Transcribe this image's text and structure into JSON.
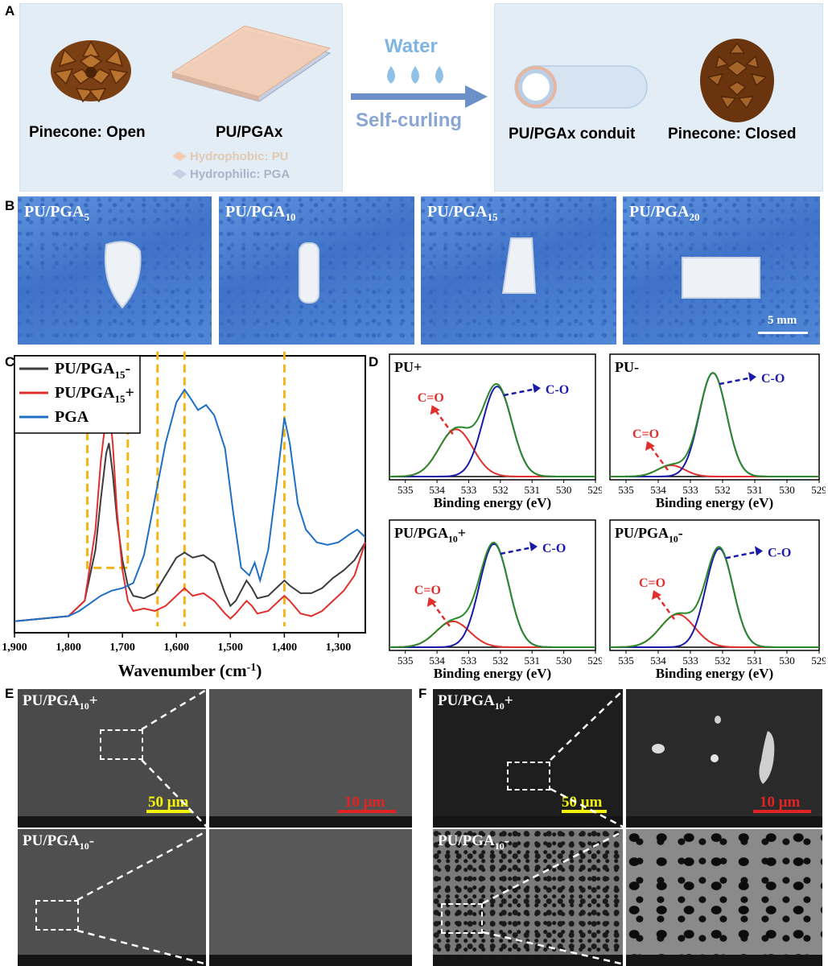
{
  "panel_labels": {
    "a": "A",
    "b": "B",
    "c": "C",
    "d": "D",
    "e": "E",
    "f": "F"
  },
  "panelA": {
    "pinecone_open": "Pinecone: Open",
    "material": "PU/PGAx",
    "legend_pu": "Hydrophobic: PU",
    "legend_pga": "Hydrophilic: PGA",
    "water": "Water",
    "self_curling": "Self-curling",
    "conduit": "PU/PGAx conduit",
    "pinecone_closed": "Pinecone: Closed",
    "colors": {
      "bg": "#e2edf6",
      "arrow": "#6b8fc9",
      "water": "#7fb5e3",
      "pu": "#f2c4a6",
      "pga": "#b9c7dd"
    }
  },
  "panelB": {
    "photos": [
      {
        "base": "PU/PGA",
        "sub": "5"
      },
      {
        "base": "PU/PGA",
        "sub": "10"
      },
      {
        "base": "PU/PGA",
        "sub": "15"
      },
      {
        "base": "PU/PGA",
        "sub": "20"
      }
    ],
    "scale": "5 mm"
  },
  "chart_data": [
    {
      "type": "line",
      "panel": "C",
      "xlabel_base": "Wavenumber (cm",
      "xlabel_sup": "-1",
      "xlabel_end": ")",
      "xlim": [
        1900,
        1250
      ],
      "x_ticks": [
        "1,900",
        "1,800",
        "1,700",
        "1,600",
        "1,500",
        "1,400",
        "1,300"
      ],
      "legend": [
        {
          "base": "PU/PGA",
          "sub": "15",
          "suffix": "-",
          "color": "#3c3c3c"
        },
        {
          "base": "PU/PGA",
          "sub": "15",
          "suffix": "+",
          "color": "#e0302d"
        },
        {
          "base": "PGA",
          "sub": "",
          "suffix": "",
          "color": "#1f6fc5"
        }
      ],
      "marker_lines": [
        1635,
        1585,
        1400
      ],
      "highlight_box": [
        1765,
        1690
      ],
      "series": [
        {
          "name": "PU/PGA15-",
          "color": "#3c3c3c",
          "x": [
            1900,
            1800,
            1770,
            1750,
            1740,
            1730,
            1725,
            1718,
            1710,
            1700,
            1690,
            1680,
            1660,
            1640,
            1620,
            1600,
            1585,
            1570,
            1550,
            1530,
            1510,
            1500,
            1490,
            1470,
            1460,
            1450,
            1430,
            1410,
            1400,
            1390,
            1370,
            1350,
            1330,
            1310,
            1290,
            1270,
            1250
          ],
          "y": [
            0.02,
            0.04,
            0.1,
            0.3,
            0.5,
            0.68,
            0.72,
            0.6,
            0.42,
            0.26,
            0.16,
            0.12,
            0.11,
            0.13,
            0.2,
            0.27,
            0.29,
            0.27,
            0.28,
            0.25,
            0.13,
            0.08,
            0.1,
            0.18,
            0.15,
            0.11,
            0.12,
            0.16,
            0.18,
            0.16,
            0.13,
            0.13,
            0.15,
            0.19,
            0.22,
            0.26,
            0.33
          ]
        },
        {
          "name": "PU/PGA15+",
          "color": "#e0302d",
          "x": [
            1900,
            1800,
            1770,
            1750,
            1740,
            1730,
            1725,
            1718,
            1710,
            1700,
            1690,
            1680,
            1660,
            1640,
            1620,
            1600,
            1585,
            1570,
            1550,
            1530,
            1510,
            1500,
            1490,
            1470,
            1460,
            1450,
            1430,
            1410,
            1400,
            1390,
            1370,
            1350,
            1330,
            1310,
            1290,
            1270,
            1250
          ],
          "y": [
            0.02,
            0.04,
            0.1,
            0.38,
            0.65,
            0.83,
            0.87,
            0.72,
            0.45,
            0.22,
            0.1,
            0.06,
            0.07,
            0.06,
            0.08,
            0.12,
            0.15,
            0.12,
            0.13,
            0.1,
            0.05,
            0.03,
            0.05,
            0.1,
            0.08,
            0.05,
            0.06,
            0.1,
            0.12,
            0.1,
            0.05,
            0.04,
            0.06,
            0.1,
            0.14,
            0.2,
            0.33
          ]
        },
        {
          "name": "PGA",
          "color": "#1f6fc5",
          "x": [
            1900,
            1800,
            1780,
            1760,
            1740,
            1720,
            1700,
            1680,
            1660,
            1640,
            1620,
            1600,
            1585,
            1575,
            1560,
            1545,
            1530,
            1510,
            1495,
            1480,
            1465,
            1455,
            1445,
            1430,
            1415,
            1400,
            1390,
            1375,
            1360,
            1340,
            1320,
            1300,
            1280,
            1265,
            1250
          ],
          "y": [
            0.02,
            0.04,
            0.06,
            0.09,
            0.12,
            0.14,
            0.15,
            0.17,
            0.28,
            0.5,
            0.72,
            0.88,
            0.93,
            0.9,
            0.85,
            0.87,
            0.83,
            0.7,
            0.45,
            0.23,
            0.2,
            0.25,
            0.18,
            0.3,
            0.55,
            0.82,
            0.72,
            0.48,
            0.38,
            0.33,
            0.32,
            0.33,
            0.36,
            0.38,
            0.35
          ]
        }
      ]
    },
    {
      "type": "line",
      "panel": "D",
      "title": "PU+",
      "xlabel": "Binding energy (eV)",
      "xlim": [
        535.5,
        529
      ],
      "x_ticks": [
        "535",
        "534",
        "533",
        "532",
        "531",
        "530",
        "529"
      ],
      "annotations": {
        "co_double": "C=O",
        "co_single": "C-O"
      },
      "components": [
        {
          "name": "C=O",
          "color": "#e0302d",
          "center": 533.4,
          "height": 0.42,
          "width": 0.75
        },
        {
          "name": "C-O",
          "color": "#1a1aa8",
          "center": 532.1,
          "height": 0.8,
          "width": 0.65
        }
      ],
      "envelope_color": "#2a8a2a"
    },
    {
      "type": "line",
      "panel": "D",
      "title": "PU-",
      "xlabel": "Binding energy (eV)",
      "xlim": [
        535.5,
        529
      ],
      "x_ticks": [
        "535",
        "534",
        "533",
        "532",
        "531",
        "530",
        "529"
      ],
      "annotations": {
        "co_double": "C=O",
        "co_single": "C-O"
      },
      "components": [
        {
          "name": "C=O",
          "color": "#e0302d",
          "center": 533.6,
          "height": 0.1,
          "width": 0.6
        },
        {
          "name": "C-O",
          "color": "#1a1aa8",
          "center": 532.3,
          "height": 0.92,
          "width": 0.6
        }
      ],
      "envelope_color": "#2a8a2a"
    },
    {
      "type": "line",
      "panel": "D",
      "title": "PU/PGA10+",
      "title_base": "PU/PGA",
      "title_sub": "10",
      "title_suffix": "+",
      "xlabel": "Binding energy (eV)",
      "xlim": [
        535.5,
        529
      ],
      "x_ticks": [
        "535",
        "534",
        "533",
        "532",
        "531",
        "530",
        "529"
      ],
      "annotations": {
        "co_double": "C=O",
        "co_single": "C-O"
      },
      "components": [
        {
          "name": "C=O",
          "color": "#e0302d",
          "center": 533.5,
          "height": 0.22,
          "width": 0.75
        },
        {
          "name": "C-O",
          "color": "#1a1aa8",
          "center": 532.2,
          "height": 0.88,
          "width": 0.65
        }
      ],
      "envelope_color": "#2a8a2a"
    },
    {
      "type": "line",
      "panel": "D",
      "title": "PU/PGA10-",
      "title_base": "PU/PGA",
      "title_sub": "10",
      "title_suffix": "-",
      "xlabel": "Binding energy (eV)",
      "xlim": [
        535.5,
        529
      ],
      "x_ticks": [
        "535",
        "534",
        "533",
        "532",
        "531",
        "530",
        "529"
      ],
      "annotations": {
        "co_double": "C=O",
        "co_single": "C-O"
      },
      "components": [
        {
          "name": "C=O",
          "color": "#e0302d",
          "center": 533.4,
          "height": 0.28,
          "width": 0.75
        },
        {
          "name": "C-O",
          "color": "#1a1aa8",
          "center": 532.1,
          "height": 0.84,
          "width": 0.6
        }
      ],
      "envelope_color": "#2a8a2a"
    }
  ],
  "panelE": {
    "top": {
      "base": "PU/PGA",
      "sub": "10",
      "suffix": "+"
    },
    "bottom": {
      "base": "PU/PGA",
      "sub": "10",
      "suffix": "-"
    },
    "scale_low": "50 μm",
    "scale_high": "10 μm"
  },
  "panelF": {
    "top": {
      "base": "PU/PGA",
      "sub": "10",
      "suffix": "+"
    },
    "bottom": {
      "base": "PU/PGA",
      "sub": "10",
      "suffix": "-"
    },
    "scale_low": "50 μm",
    "scale_high": "10 μm"
  }
}
